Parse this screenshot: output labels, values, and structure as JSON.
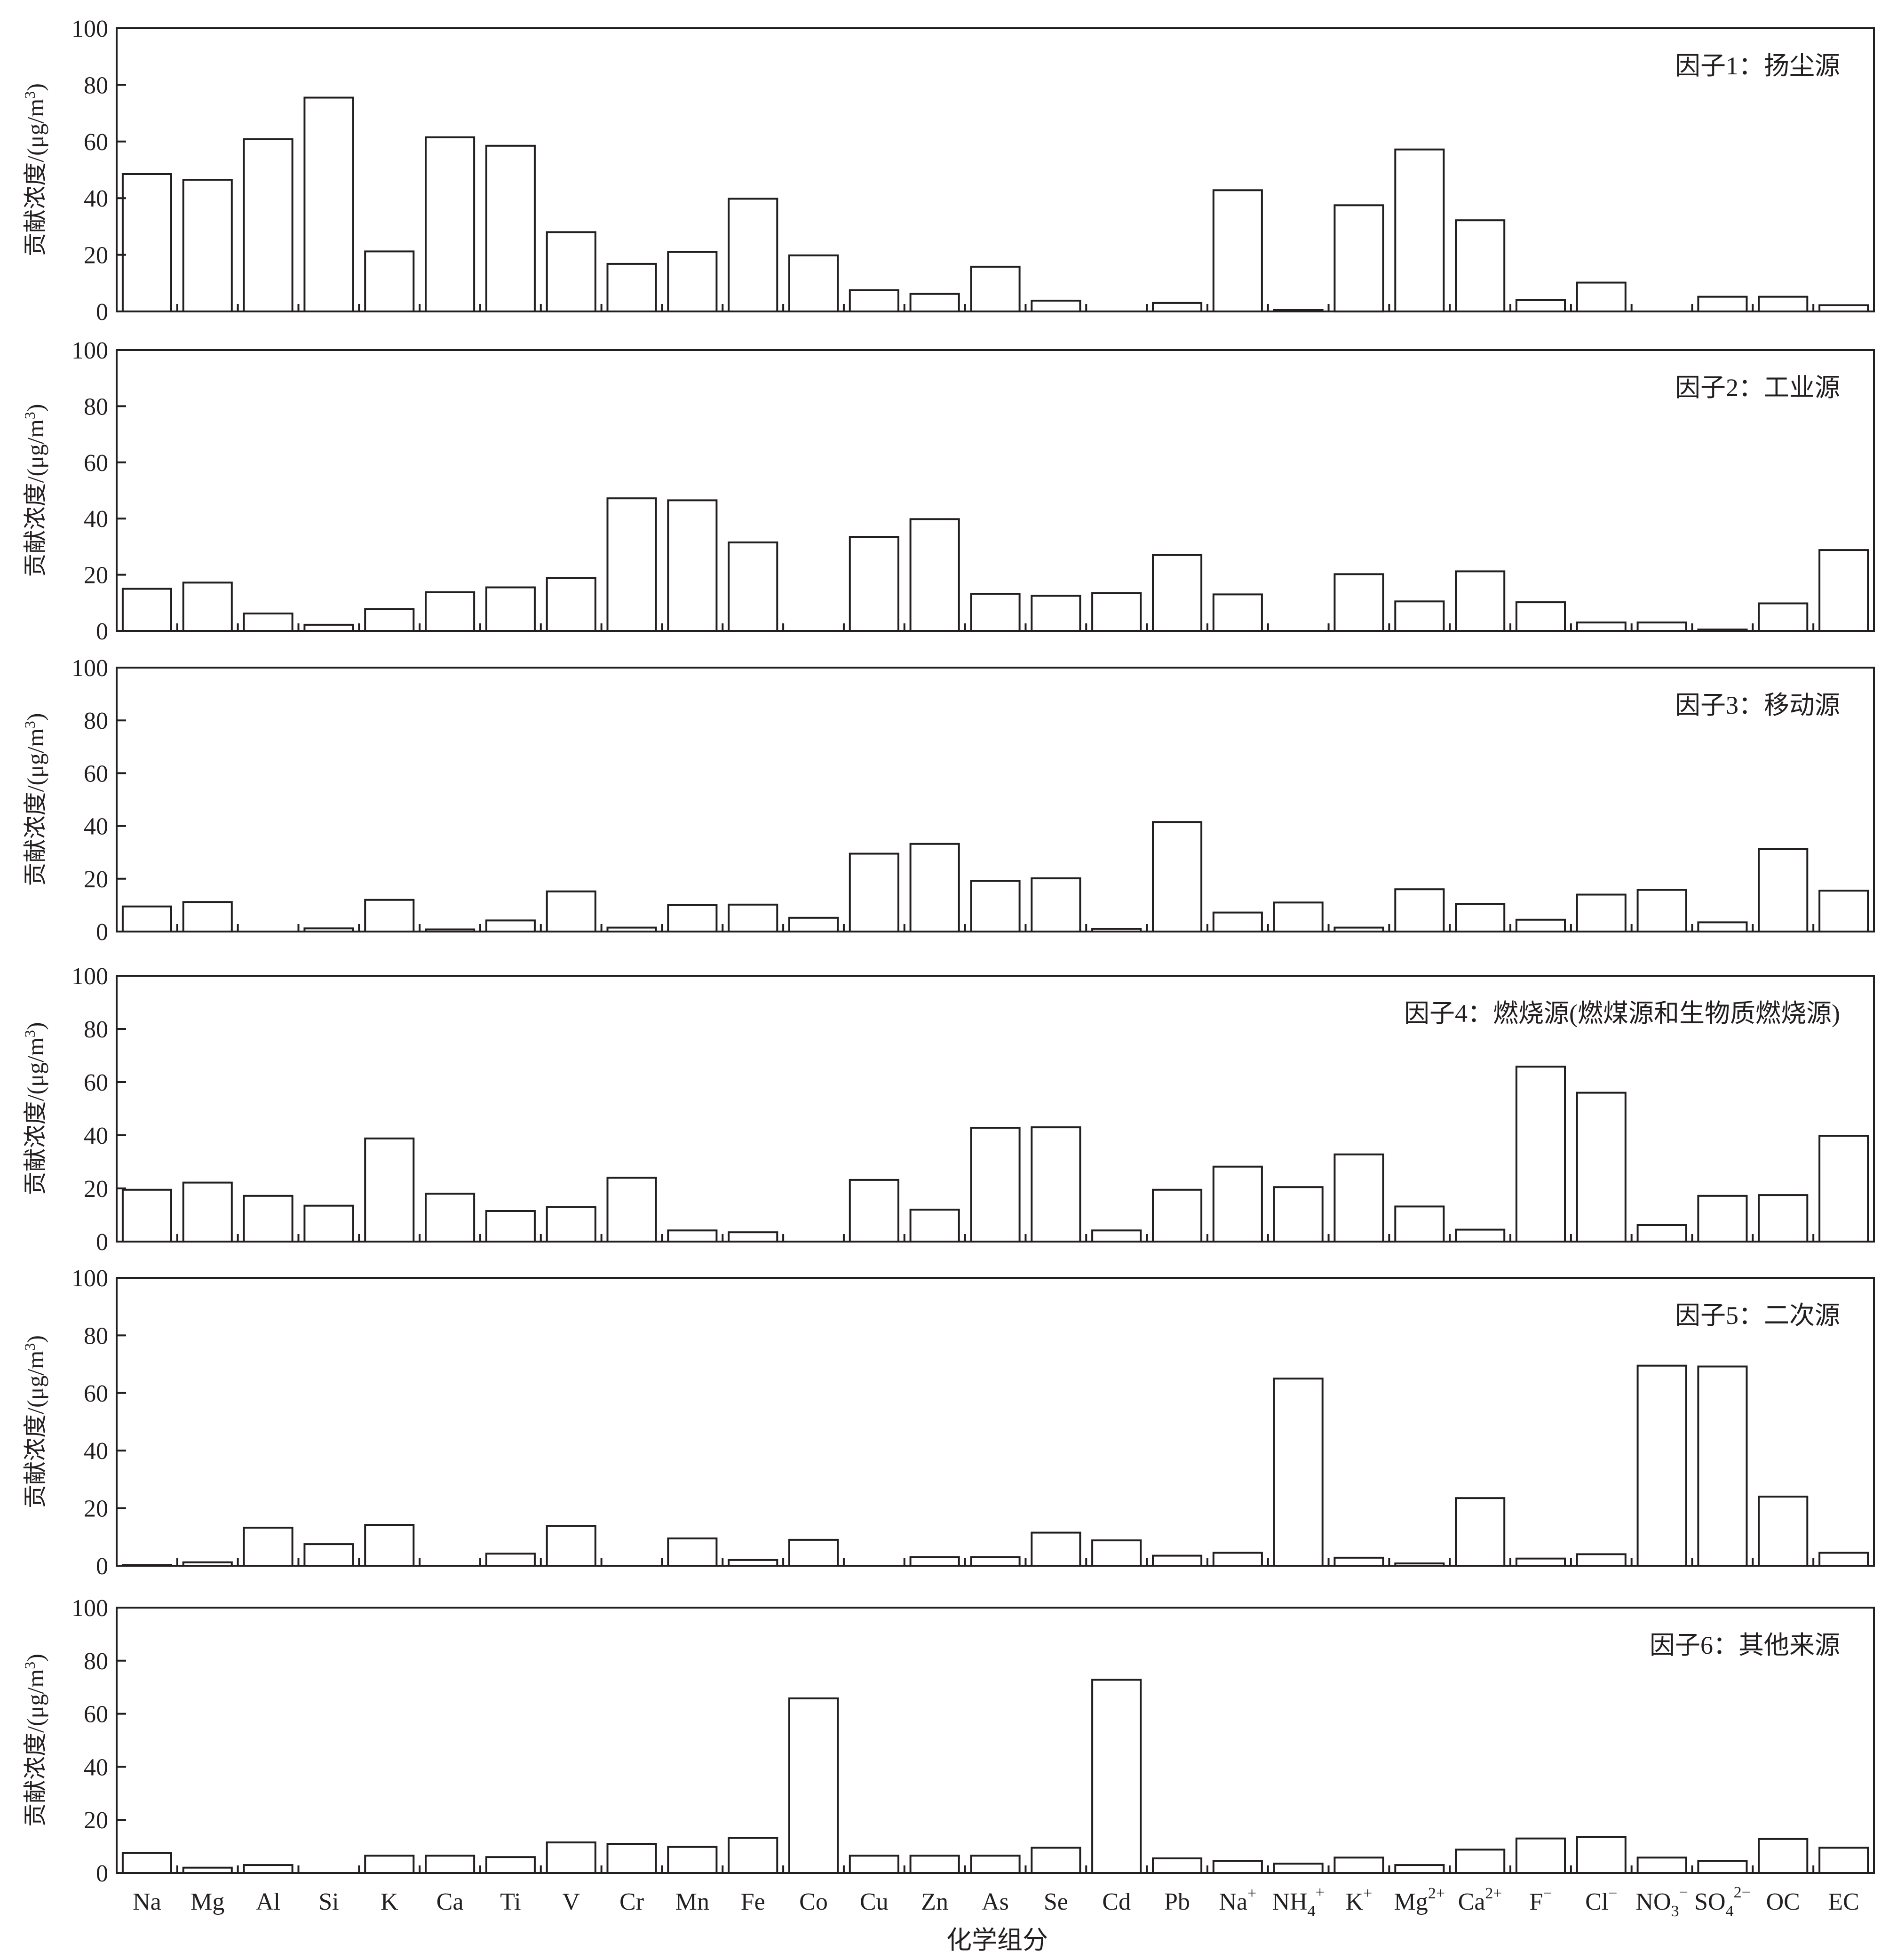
{
  "categories": [
    "Na",
    "Mg",
    "Al",
    "Si",
    "K",
    "Ca",
    "Ti",
    "V",
    "Cr",
    "Mn",
    "Fe",
    "Co",
    "Cu",
    "Zn",
    "As",
    "Se",
    "Cd",
    "Pb",
    "Na+",
    "NH4+",
    "K+",
    "Mg2+",
    "Ca2+",
    "F−",
    "Cl−",
    "NO3−",
    "SO42−",
    "OC",
    "EC"
  ],
  "x_tick_labels": [
    {
      "base": "Na"
    },
    {
      "base": "Mg"
    },
    {
      "base": "Al"
    },
    {
      "base": "Si"
    },
    {
      "base": "K"
    },
    {
      "base": "Ca"
    },
    {
      "base": "Ti"
    },
    {
      "base": "V"
    },
    {
      "base": "Cr"
    },
    {
      "base": "Mn"
    },
    {
      "base": "Fe"
    },
    {
      "base": "Co"
    },
    {
      "base": "Cu"
    },
    {
      "base": "Zn"
    },
    {
      "base": "As"
    },
    {
      "base": "Se"
    },
    {
      "base": "Cd"
    },
    {
      "base": "Pb"
    },
    {
      "base": "Na",
      "sup": "+"
    },
    {
      "base": "NH",
      "sub": "4",
      "sup": "+"
    },
    {
      "base": "K",
      "sup": "+"
    },
    {
      "base": "Mg",
      "sup": "2+"
    },
    {
      "base": "Ca",
      "sup": "2+"
    },
    {
      "base": "F",
      "sup": "−"
    },
    {
      "base": "Cl",
      "sup": "−"
    },
    {
      "base": "NO",
      "sub": "3",
      "sup": "−"
    },
    {
      "base": "SO",
      "sub": "4",
      "sup": "2−"
    },
    {
      "base": "OC"
    },
    {
      "base": "EC"
    }
  ],
  "y_axis": {
    "label_main": "贡献浓度/(μg/m",
    "label_sup": "3",
    "label_close": ")",
    "ticks": [
      "0",
      "20",
      "40",
      "60",
      "80",
      "100"
    ]
  },
  "x_axis": {
    "label": "化学组分"
  },
  "colors": {
    "bar_fill": "#ffffff",
    "stroke": "#231f20"
  },
  "chart_data": [
    {
      "type": "bar",
      "title": "因子1：扬尘源",
      "ylabel": "贡献浓度/(μg/m3)",
      "xlabel": "",
      "ylim": [
        0,
        100
      ],
      "grid": false,
      "values": [
        48.5,
        46.5,
        60.8,
        75.5,
        21.2,
        61.5,
        58.5,
        28,
        16.8,
        21,
        39.8,
        19.8,
        7.5,
        6.2,
        15.8,
        3.8,
        0,
        3,
        42.8,
        0.5,
        37.5,
        57.2,
        32.2,
        4,
        10.2,
        0,
        5.2,
        5.2,
        2.2
      ]
    },
    {
      "type": "bar",
      "title": "因子2：工业源",
      "ylabel": "贡献浓度/(μg/m3)",
      "xlabel": "",
      "ylim": [
        0,
        100
      ],
      "grid": false,
      "values": [
        15,
        17.2,
        6.2,
        2.2,
        7.8,
        13.8,
        15.5,
        18.8,
        47.2,
        46.5,
        31.5,
        0,
        33.5,
        39.8,
        13.2,
        12.5,
        13.5,
        27,
        13,
        0,
        20.2,
        10.5,
        21.2,
        10.2,
        3,
        3,
        0.5,
        9.8,
        28.8
      ]
    },
    {
      "type": "bar",
      "title": "因子3：移动源",
      "ylabel": "贡献浓度/(μg/m3)",
      "xlabel": "",
      "ylim": [
        0,
        100
      ],
      "grid": false,
      "values": [
        9.5,
        11.2,
        0,
        1.2,
        12,
        0.8,
        4.2,
        15.2,
        1.5,
        10,
        10.2,
        5.2,
        29.5,
        33.2,
        19.2,
        20.2,
        1,
        41.5,
        7.2,
        11,
        1.5,
        16,
        10.5,
        4.5,
        14,
        15.8,
        3.5,
        31.2,
        15.5
      ]
    },
    {
      "type": "bar",
      "title": "因子4：燃烧源(燃煤源和生物质燃烧源)",
      "ylabel": "贡献浓度/(μg/m3)",
      "xlabel": "",
      "ylim": [
        0,
        100
      ],
      "grid": false,
      "values": [
        19.5,
        22.2,
        17.2,
        13.5,
        38.8,
        18,
        11.5,
        13,
        24,
        4.2,
        3.5,
        0,
        23.2,
        12,
        42.8,
        43,
        4.2,
        19.5,
        28.2,
        20.5,
        32.8,
        13.2,
        4.5,
        65.8,
        56,
        6.2,
        17.2,
        17.5,
        39.8
      ]
    },
    {
      "type": "bar",
      "title": "因子5：二次源",
      "ylabel": "贡献浓度/(μg/m3)",
      "xlabel": "",
      "ylim": [
        0,
        100
      ],
      "grid": false,
      "values": [
        0.3,
        1.2,
        13.2,
        7.5,
        14.2,
        0,
        4.2,
        13.8,
        0,
        9.5,
        2,
        9,
        0,
        3,
        3,
        11.5,
        8.8,
        3.5,
        4.5,
        65,
        2.8,
        0.8,
        23.5,
        2.5,
        4,
        69.5,
        69.2,
        24,
        4.5
      ]
    },
    {
      "type": "bar",
      "title": "因子6：其他来源",
      "ylabel": "贡献浓度/(μg/m3)",
      "xlabel": "化学组分",
      "ylim": [
        0,
        100
      ],
      "grid": false,
      "values": [
        7.5,
        2,
        3,
        0,
        6.5,
        6.5,
        6,
        11.5,
        11,
        9.8,
        13.2,
        65.8,
        6.5,
        6.5,
        6.5,
        9.5,
        72.8,
        5.5,
        4.5,
        3.5,
        5.8,
        3,
        8.8,
        13,
        13.5,
        5.8,
        4.5,
        12.8,
        9.5
      ]
    }
  ]
}
